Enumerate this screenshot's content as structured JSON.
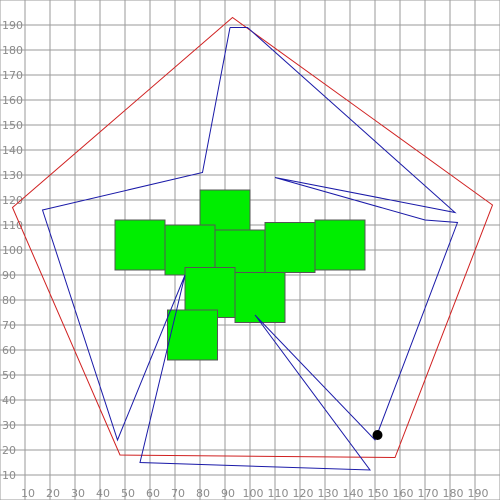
{
  "colors": {
    "background": "#ffffff",
    "grid": "#9a9a9a",
    "tick_label": "#8c8c8c",
    "outer_pentagon": "#d02020",
    "star": "#1a1aa8",
    "square_fill": "#00ee00",
    "marker": "#000000"
  },
  "axes": {
    "x_ticks": [
      10,
      20,
      30,
      40,
      50,
      60,
      70,
      80,
      90,
      100,
      110,
      120,
      130,
      140,
      150,
      160,
      170,
      180,
      190
    ],
    "y_ticks": [
      10,
      20,
      30,
      40,
      50,
      60,
      70,
      80,
      90,
      100,
      110,
      120,
      130,
      140,
      150,
      160,
      170,
      180,
      190
    ],
    "range": [
      0,
      200
    ]
  },
  "outer_pentagon": [
    [
      93,
      193
    ],
    [
      5,
      117
    ],
    [
      48,
      18
    ],
    [
      158,
      17
    ],
    [
      197,
      118
    ]
  ],
  "star": [
    [
      92,
      189
    ],
    [
      81,
      131
    ],
    [
      17,
      116
    ],
    [
      47,
      24
    ],
    [
      74,
      90
    ],
    [
      56,
      15
    ],
    [
      148,
      12
    ],
    [
      102,
      74
    ],
    [
      150,
      24
    ],
    [
      183,
      111
    ],
    [
      170,
      112
    ],
    [
      110,
      129
    ],
    [
      182,
      115
    ],
    [
      99,
      189
    ],
    [
      92,
      189
    ]
  ],
  "squares": [
    {
      "x": 80,
      "y": 104
    },
    {
      "x": 46,
      "y": 92
    },
    {
      "x": 66,
      "y": 90
    },
    {
      "x": 86,
      "y": 88
    },
    {
      "x": 106,
      "y": 91
    },
    {
      "x": 126,
      "y": 92
    },
    {
      "x": 74,
      "y": 73
    },
    {
      "x": 94,
      "y": 71
    },
    {
      "x": 67,
      "y": 56
    }
  ],
  "square_size": 20,
  "marker": {
    "x": 151,
    "y": 26
  }
}
